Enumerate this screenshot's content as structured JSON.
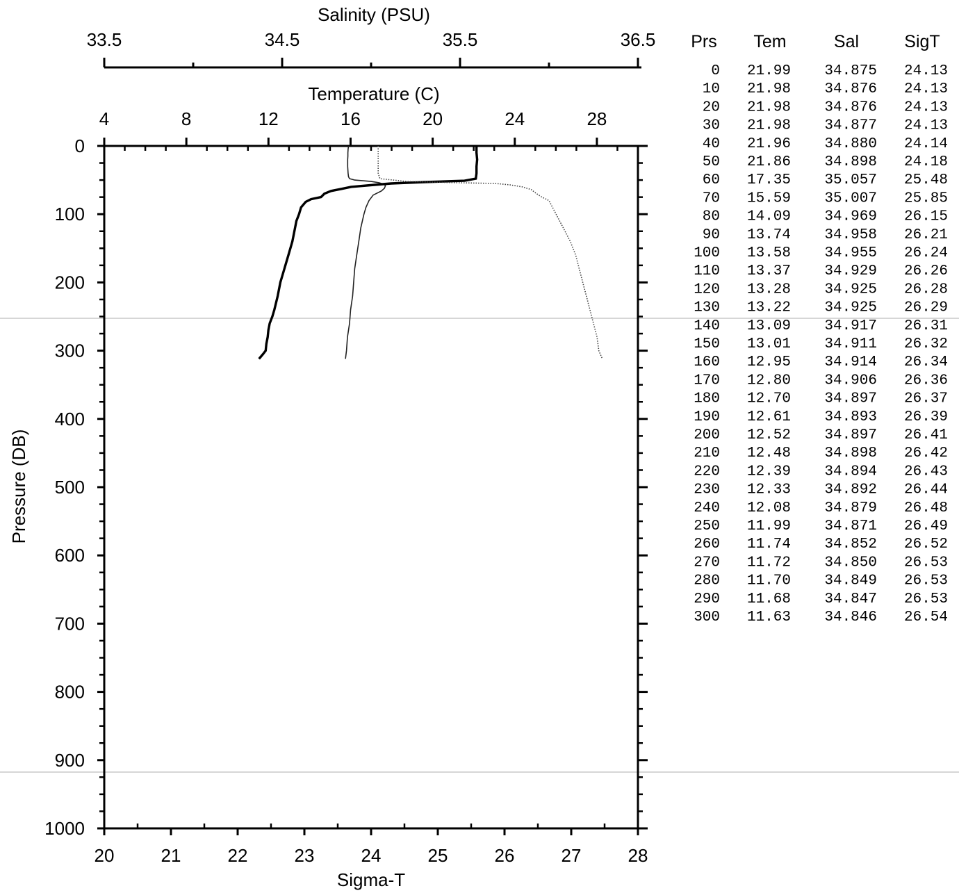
{
  "chart_data": {
    "type": "line",
    "axes": {
      "salinity": {
        "label": "Salinity (PSU)",
        "range": [
          33.5,
          36.5
        ],
        "ticks": [
          "33.5",
          "34.5",
          "35.5",
          "36.5"
        ],
        "major": [
          33.5,
          34.5,
          35.5,
          36.5
        ],
        "minor": [
          34.0,
          35.0,
          36.0
        ]
      },
      "temperature": {
        "label": "Temperature (C)",
        "range": [
          4,
          30
        ],
        "ticks": [
          "4",
          "8",
          "12",
          "16",
          "20",
          "24",
          "28"
        ],
        "major": [
          4,
          8,
          12,
          16,
          20,
          24,
          28
        ]
      },
      "sigma_t": {
        "label": "Sigma-T",
        "range": [
          20,
          28
        ],
        "ticks": [
          "20",
          "21",
          "22",
          "23",
          "24",
          "25",
          "26",
          "27",
          "28"
        ],
        "major": [
          20,
          21,
          22,
          23,
          24,
          25,
          26,
          27,
          28
        ]
      },
      "pressure": {
        "label": "Pressure (DB)",
        "range": [
          0,
          1000
        ],
        "inverted": true,
        "ticks": [
          "0",
          "100",
          "200",
          "300",
          "400",
          "500",
          "600",
          "700",
          "800",
          "900",
          "1000"
        ],
        "major": [
          0,
          100,
          200,
          300,
          400,
          500,
          600,
          700,
          800,
          900,
          1000
        ]
      }
    },
    "series": [
      {
        "key": "temperature",
        "axis": "temperature",
        "style": "solid-thin",
        "points": [
          [
            0,
            15.9
          ],
          [
            5,
            15.88
          ],
          [
            10,
            15.87
          ],
          [
            15,
            15.87
          ],
          [
            20,
            15.86
          ],
          [
            25,
            15.86
          ],
          [
            30,
            15.86
          ],
          [
            35,
            15.87
          ],
          [
            40,
            15.88
          ],
          [
            45,
            15.9
          ],
          [
            48,
            15.95
          ],
          [
            50,
            16.2
          ],
          [
            52,
            17.0
          ],
          [
            54,
            17.4
          ],
          [
            56,
            17.6
          ],
          [
            58,
            17.7
          ],
          [
            62,
            17.65
          ],
          [
            66,
            17.5
          ],
          [
            72,
            17.1
          ],
          [
            80,
            16.9
          ],
          [
            90,
            16.75
          ],
          [
            100,
            16.65
          ],
          [
            120,
            16.5
          ],
          [
            140,
            16.4
          ],
          [
            160,
            16.3
          ],
          [
            180,
            16.2
          ],
          [
            200,
            16.15
          ],
          [
            220,
            16.1
          ],
          [
            240,
            16.0
          ],
          [
            260,
            15.95
          ],
          [
            280,
            15.85
          ],
          [
            300,
            15.8
          ],
          [
            312,
            15.75
          ]
        ]
      },
      {
        "key": "sigma_t",
        "axis": "sigma_t",
        "style": "solid-thick",
        "points": [
          [
            0,
            25.58
          ],
          [
            10,
            25.58
          ],
          [
            20,
            25.59
          ],
          [
            30,
            25.58
          ],
          [
            40,
            25.58
          ],
          [
            48,
            25.57
          ],
          [
            51,
            25.4
          ],
          [
            53,
            24.8
          ],
          [
            55,
            24.3
          ],
          [
            57,
            24.05
          ],
          [
            60,
            23.7
          ],
          [
            63,
            23.55
          ],
          [
            66,
            23.4
          ],
          [
            70,
            23.3
          ],
          [
            75,
            23.25
          ],
          [
            78,
            23.1
          ],
          [
            82,
            23.02
          ],
          [
            90,
            22.95
          ],
          [
            100,
            22.92
          ],
          [
            110,
            22.88
          ],
          [
            120,
            22.86
          ],
          [
            140,
            22.82
          ],
          [
            160,
            22.76
          ],
          [
            180,
            22.7
          ],
          [
            200,
            22.64
          ],
          [
            220,
            22.6
          ],
          [
            240,
            22.55
          ],
          [
            250,
            22.52
          ],
          [
            260,
            22.48
          ],
          [
            270,
            22.46
          ],
          [
            280,
            22.45
          ],
          [
            290,
            22.43
          ],
          [
            300,
            22.42
          ],
          [
            305,
            22.38
          ],
          [
            312,
            22.32
          ]
        ]
      },
      {
        "key": "salinity",
        "axis": "salinity",
        "style": "dotted",
        "points": [
          [
            0,
            35.04
          ],
          [
            5,
            35.04
          ],
          [
            10,
            35.04
          ],
          [
            20,
            35.04
          ],
          [
            30,
            35.04
          ],
          [
            40,
            35.04
          ],
          [
            48,
            35.05
          ],
          [
            52,
            35.2
          ],
          [
            54,
            35.5
          ],
          [
            55,
            35.7
          ],
          [
            57,
            35.78
          ],
          [
            60,
            35.85
          ],
          [
            64,
            35.9
          ],
          [
            70,
            35.93
          ],
          [
            75,
            35.96
          ],
          [
            80,
            36.0
          ],
          [
            90,
            36.02
          ],
          [
            100,
            36.04
          ],
          [
            120,
            36.08
          ],
          [
            140,
            36.12
          ],
          [
            160,
            36.15
          ],
          [
            180,
            36.17
          ],
          [
            200,
            36.19
          ],
          [
            220,
            36.21
          ],
          [
            240,
            36.23
          ],
          [
            260,
            36.25
          ],
          [
            280,
            36.27
          ],
          [
            300,
            36.28
          ],
          [
            312,
            36.3
          ]
        ]
      }
    ],
    "table": {
      "headers": [
        "Prs",
        "Tem",
        "Sal",
        "SigT"
      ],
      "rows": [
        [
          "0",
          "21.99",
          "34.875",
          "24.13"
        ],
        [
          "10",
          "21.98",
          "34.876",
          "24.13"
        ],
        [
          "20",
          "21.98",
          "34.876",
          "24.13"
        ],
        [
          "30",
          "21.98",
          "34.877",
          "24.13"
        ],
        [
          "40",
          "21.96",
          "34.880",
          "24.14"
        ],
        [
          "50",
          "21.86",
          "34.898",
          "24.18"
        ],
        [
          "60",
          "17.35",
          "35.057",
          "25.48"
        ],
        [
          "70",
          "15.59",
          "35.007",
          "25.85"
        ],
        [
          "80",
          "14.09",
          "34.969",
          "26.15"
        ],
        [
          "90",
          "13.74",
          "34.958",
          "26.21"
        ],
        [
          "100",
          "13.58",
          "34.955",
          "26.24"
        ],
        [
          "110",
          "13.37",
          "34.929",
          "26.26"
        ],
        [
          "120",
          "13.28",
          "34.925",
          "26.28"
        ],
        [
          "130",
          "13.22",
          "34.925",
          "26.29"
        ],
        [
          "140",
          "13.09",
          "34.917",
          "26.31"
        ],
        [
          "150",
          "13.01",
          "34.911",
          "26.32"
        ],
        [
          "160",
          "12.95",
          "34.914",
          "26.34"
        ],
        [
          "170",
          "12.80",
          "34.906",
          "26.36"
        ],
        [
          "180",
          "12.70",
          "34.897",
          "26.37"
        ],
        [
          "190",
          "12.61",
          "34.893",
          "26.39"
        ],
        [
          "200",
          "12.52",
          "34.897",
          "26.41"
        ],
        [
          "210",
          "12.48",
          "34.898",
          "26.42"
        ],
        [
          "220",
          "12.39",
          "34.894",
          "26.43"
        ],
        [
          "230",
          "12.33",
          "34.892",
          "26.44"
        ],
        [
          "240",
          "12.08",
          "34.879",
          "26.48"
        ],
        [
          "250",
          "11.99",
          "34.871",
          "26.49"
        ],
        [
          "260",
          "11.74",
          "34.852",
          "26.52"
        ],
        [
          "270",
          "11.72",
          "34.850",
          "26.53"
        ],
        [
          "280",
          "11.70",
          "34.849",
          "26.53"
        ],
        [
          "290",
          "11.68",
          "34.847",
          "26.53"
        ],
        [
          "300",
          "11.63",
          "34.846",
          "26.54"
        ]
      ]
    }
  }
}
